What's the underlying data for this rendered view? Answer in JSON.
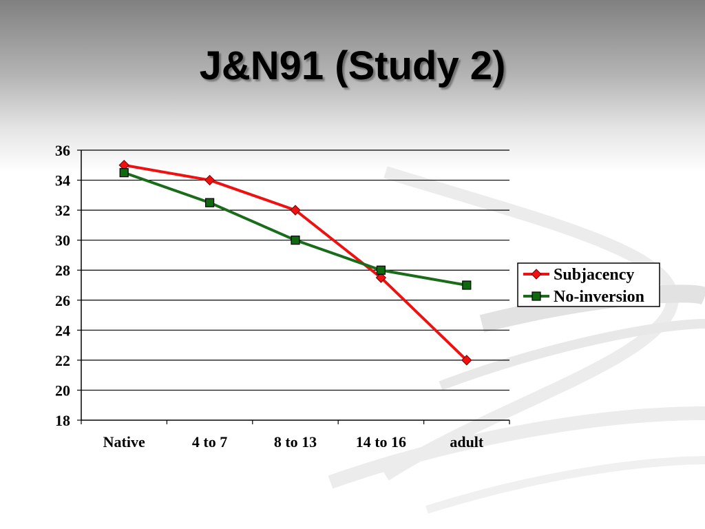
{
  "slide": {
    "title": "J&N91 (Study 2)"
  },
  "colors": {
    "subjacency": "#ee1111",
    "no_inversion": "#1a6b1a",
    "marker_no_inversion": "#0f6a0f"
  },
  "chart_data": {
    "type": "line",
    "title": "",
    "xlabel": "",
    "ylabel": "",
    "categories": [
      "Native",
      "4 to 7",
      "8 to 13",
      "14 to 16",
      "adult"
    ],
    "ylim": [
      18,
      36
    ],
    "yticks": [
      18,
      20,
      22,
      24,
      26,
      28,
      30,
      32,
      34,
      36
    ],
    "grid": true,
    "legend": "right",
    "series": [
      {
        "name": "Subjacency",
        "marker": "diamond",
        "values": [
          35,
          34,
          32,
          27.5,
          22
        ]
      },
      {
        "name": "No-inversion",
        "marker": "square",
        "values": [
          34.5,
          32.5,
          30,
          28,
          27
        ]
      }
    ]
  }
}
